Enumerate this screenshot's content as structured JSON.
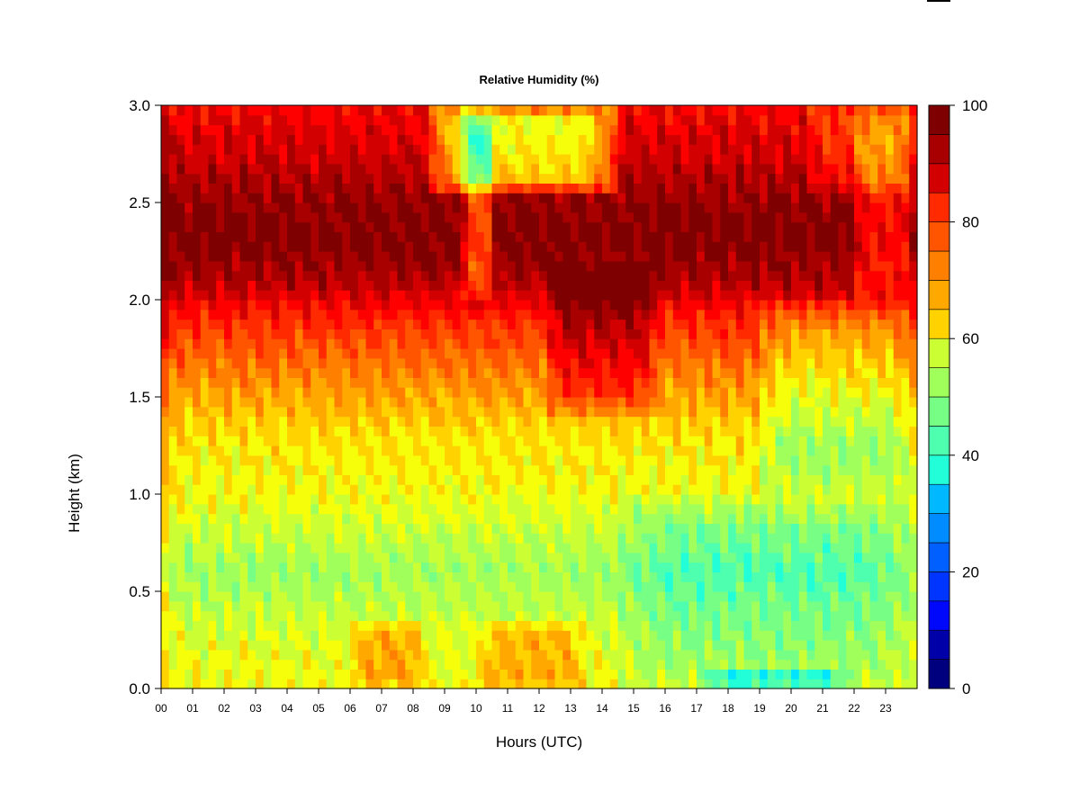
{
  "chart_data": {
    "type": "heatmap",
    "title": "Relative Humidity (%)",
    "xlabel": "Hours (UTC)",
    "ylabel": "Height (km)",
    "x_ticks": [
      "00",
      "01",
      "02",
      "03",
      "04",
      "05",
      "06",
      "07",
      "08",
      "09",
      "10",
      "11",
      "12",
      "13",
      "14",
      "15",
      "16",
      "17",
      "18",
      "19",
      "20",
      "21",
      "22",
      "23"
    ],
    "y_ticks": [
      "0.0",
      "0.5",
      "1.0",
      "1.5",
      "2.0",
      "2.5",
      "3.0"
    ],
    "xlim": [
      0,
      24
    ],
    "ylim": [
      0,
      3
    ],
    "colorbar": {
      "ticks": [
        "0",
        "20",
        "40",
        "60",
        "80",
        "100"
      ],
      "range": [
        0,
        100
      ],
      "levels": 20,
      "colors": [
        "#00007f",
        "#0000a8",
        "#0000d0",
        "#0008fb",
        "#0034ff",
        "#0060ff",
        "#008cff",
        "#00b8ff",
        "#00e4ff",
        "#22ffd8",
        "#4dffaf",
        "#77ff85",
        "#a1ff5c",
        "#ccff33",
        "#f6ff09",
        "#ffd200",
        "#ffa800",
        "#ff7f00",
        "#ff5500",
        "#ff2a00",
        "#ff0000",
        "#d20000",
        "#a80000",
        "#7f0000"
      ]
    },
    "z_profiles": [
      {
        "h": 0.0,
        "rh": 60
      },
      {
        "h": 0.25,
        "rh": 58
      },
      {
        "h": 0.6,
        "rh": 52
      },
      {
        "h": 1.0,
        "rh": 60
      },
      {
        "h": 1.3,
        "rh": 63
      },
      {
        "h": 1.6,
        "rh": 72
      },
      {
        "h": 1.9,
        "rh": 82
      },
      {
        "h": 2.1,
        "rh": 93
      },
      {
        "h": 2.3,
        "rh": 98
      },
      {
        "h": 2.5,
        "rh": 96
      },
      {
        "h": 2.75,
        "rh": 90
      },
      {
        "h": 3.0,
        "rh": 86
      }
    ],
    "time_anomalies": [
      {
        "t0": 0.0,
        "t1": 0.4,
        "h0": 0.0,
        "h1": 3.0,
        "d": 4
      },
      {
        "t0": 6.0,
        "t1": 8.4,
        "h0": 0.0,
        "h1": 0.35,
        "d": 10
      },
      {
        "t0": 10.0,
        "t1": 13.5,
        "h0": 0.0,
        "h1": 0.35,
        "d": 9
      },
      {
        "t0": 8.5,
        "t1": 14.5,
        "h0": 2.55,
        "h1": 3.0,
        "d": -28
      },
      {
        "t0": 9.6,
        "t1": 10.6,
        "h0": 2.0,
        "h1": 3.0,
        "d": -18
      },
      {
        "t0": 12.2,
        "t1": 15.8,
        "h0": 1.4,
        "h1": 2.2,
        "d": 12
      },
      {
        "t0": 14.6,
        "t1": 23.9,
        "h0": 0.0,
        "h1": 1.0,
        "d": -8
      },
      {
        "t0": 17.0,
        "t1": 22.0,
        "h0": 0.0,
        "h1": 0.12,
        "d": -14
      },
      {
        "t0": 19.0,
        "t1": 23.9,
        "h0": 1.0,
        "h1": 2.0,
        "d": -10
      },
      {
        "t0": 22.0,
        "t1": 23.9,
        "h0": 2.0,
        "h1": 3.0,
        "d": -12
      },
      {
        "t0": 20.5,
        "t1": 23.9,
        "h0": 2.55,
        "h1": 3.0,
        "d": -8
      }
    ]
  }
}
